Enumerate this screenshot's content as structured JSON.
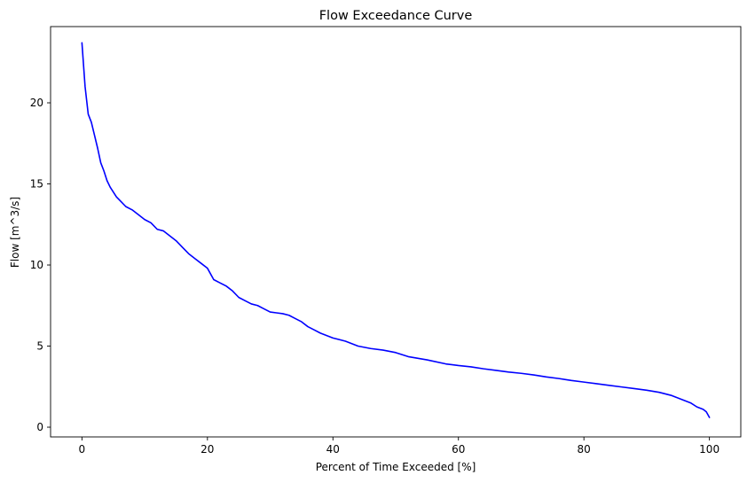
{
  "chart_data": {
    "type": "line",
    "title": "Flow Exceedance Curve",
    "xlabel": "Percent of Time Exceeded [%]",
    "ylabel": "Flow [m^3/s]",
    "xlim": [
      -5,
      105
    ],
    "ylim": [
      -0.6,
      24.7
    ],
    "xticks": [
      0,
      20,
      40,
      60,
      80,
      100
    ],
    "yticks": [
      0,
      5,
      10,
      15,
      20
    ],
    "grid": false,
    "line_color": "#0000ff",
    "series": [
      {
        "x": [
          0,
          0.5,
          1,
          1.5,
          2,
          2.5,
          3,
          3.5,
          4,
          4.5,
          5,
          5.5,
          6,
          7,
          8,
          9,
          10,
          11,
          12,
          13,
          14,
          15,
          16,
          17,
          18,
          19,
          20,
          21,
          22,
          23,
          24,
          25,
          26,
          27,
          28,
          29,
          30,
          31,
          32,
          33,
          34,
          35,
          36,
          37,
          38,
          40,
          42,
          44,
          46,
          48,
          50,
          52,
          55,
          58,
          60,
          62,
          64,
          66,
          68,
          70,
          72,
          74,
          76,
          78,
          80,
          82,
          84,
          86,
          88,
          90,
          92,
          94,
          95,
          96,
          97,
          98,
          99,
          99.5,
          100
        ],
        "y": [
          23.7,
          21.0,
          19.3,
          18.8,
          18.0,
          17.2,
          16.3,
          15.8,
          15.2,
          14.8,
          14.5,
          14.2,
          14.0,
          13.6,
          13.4,
          13.1,
          12.8,
          12.6,
          12.2,
          12.1,
          11.8,
          11.5,
          11.1,
          10.7,
          10.4,
          10.1,
          9.8,
          9.1,
          8.9,
          8.7,
          8.4,
          8.0,
          7.8,
          7.6,
          7.5,
          7.3,
          7.1,
          7.05,
          7.0,
          6.9,
          6.7,
          6.5,
          6.2,
          6.0,
          5.8,
          5.5,
          5.3,
          5.0,
          4.85,
          4.75,
          4.6,
          4.35,
          4.15,
          3.9,
          3.8,
          3.72,
          3.6,
          3.5,
          3.4,
          3.32,
          3.22,
          3.1,
          3.0,
          2.88,
          2.78,
          2.68,
          2.58,
          2.48,
          2.38,
          2.28,
          2.15,
          1.95,
          1.8,
          1.65,
          1.5,
          1.25,
          1.1,
          0.95,
          0.6
        ]
      }
    ]
  }
}
